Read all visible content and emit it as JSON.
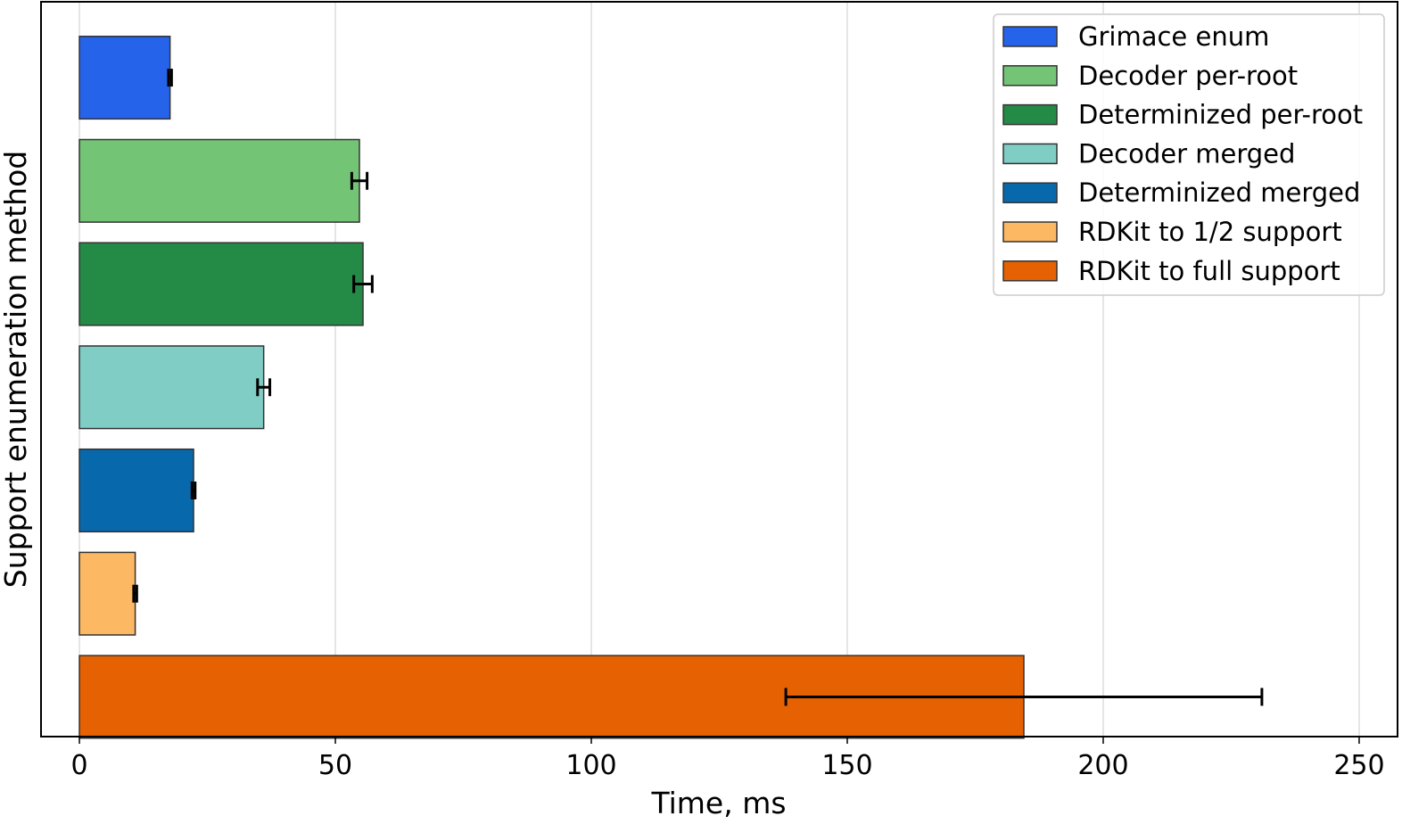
{
  "chart_data": {
    "type": "bar",
    "orientation": "horizontal",
    "title": "",
    "xlabel": "Time, ms",
    "ylabel": "Support enumeration method",
    "xlim": [
      -7.5,
      257.5
    ],
    "xticks": [
      0,
      50,
      100,
      150,
      200,
      250
    ],
    "grid": "x",
    "legend_position": "top-right",
    "series": [
      {
        "name": "Grimace enum",
        "value": 17.7,
        "error": 0.3,
        "color": "#2563EB"
      },
      {
        "name": "Decoder per-root",
        "value": 54.7,
        "error": 1.5,
        "color": "#74C476"
      },
      {
        "name": "Determinized per-root",
        "value": 55.4,
        "error": 1.8,
        "color": "#238B45"
      },
      {
        "name": "Decoder merged",
        "value": 36.0,
        "error": 1.2,
        "color": "#7FCDC5"
      },
      {
        "name": "Determinized merged",
        "value": 22.3,
        "error": 0.3,
        "color": "#0868AC"
      },
      {
        "name": "RDKit to 1/2 support",
        "value": 10.9,
        "error": 0.3,
        "color": "#FDB863"
      },
      {
        "name": "RDKit to full support",
        "value": 184.5,
        "error": 46.5,
        "color": "#E66101"
      }
    ]
  }
}
